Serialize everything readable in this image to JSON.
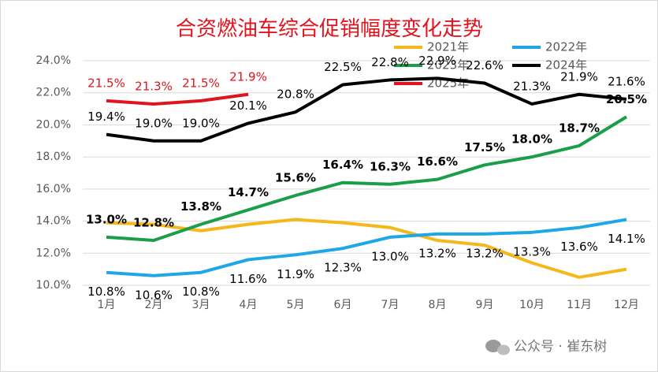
{
  "chart_data": {
    "type": "line",
    "title": "合资燃油车综合促销幅度变化走势",
    "categories": [
      "1月",
      "2月",
      "3月",
      "4月",
      "5月",
      "6月",
      "7月",
      "8月",
      "9月",
      "10月",
      "11月",
      "12月"
    ],
    "series": [
      {
        "name": "2021年",
        "color": "#f4b81c",
        "values": [
          13.9,
          13.8,
          13.4,
          13.8,
          14.1,
          13.9,
          13.6,
          12.8,
          12.5,
          11.4,
          10.5,
          11.0
        ]
      },
      {
        "name": "2022年",
        "color": "#1ea7e6",
        "values": [
          10.8,
          10.6,
          10.8,
          11.6,
          11.9,
          12.3,
          13.0,
          13.2,
          13.2,
          13.3,
          13.6,
          14.1
        ],
        "value_labels": [
          "10.8%",
          "10.6%",
          "10.8%",
          "11.6%",
          "11.9%",
          "12.3%",
          "13.0%",
          "13.2%",
          "13.2%",
          "13.3%",
          "13.6%",
          "14.1%"
        ]
      },
      {
        "name": "2023年",
        "color": "#1a9e4a",
        "values": [
          13.0,
          12.8,
          13.8,
          14.7,
          15.6,
          16.4,
          16.3,
          16.6,
          17.5,
          18.0,
          18.7,
          20.5
        ],
        "value_labels": [
          "13.0%",
          "12.8%",
          "13.8%",
          "14.7%",
          "15.6%",
          "16.4%",
          "16.3%",
          "16.6%",
          "17.5%",
          "18.0%",
          "18.7%",
          "20.5%"
        ]
      },
      {
        "name": "2024年",
        "color": "#000000",
        "values": [
          19.4,
          19.0,
          19.0,
          20.1,
          20.8,
          22.5,
          22.8,
          22.9,
          22.6,
          21.3,
          21.9,
          21.6
        ],
        "value_labels": [
          "19.4%",
          "19.0%",
          "19.0%",
          "20.1%",
          "20.8%",
          "22.5%",
          "22.8%",
          "22.9%",
          "22.6%",
          "21.3%",
          "21.9%",
          "21.6%"
        ]
      },
      {
        "name": "2025年",
        "color": "#e0141e",
        "values": [
          21.5,
          21.3,
          21.5,
          21.9,
          null,
          null,
          null,
          null,
          null,
          null,
          null,
          null
        ],
        "value_labels": [
          "21.5%",
          "21.3%",
          "21.5%",
          "21.9%",
          null,
          null,
          null,
          null,
          null,
          null,
          null,
          null
        ]
      }
    ],
    "ylim": [
      10,
      24
    ],
    "yticks": [
      {
        "value": 10,
        "label": "10.0%"
      },
      {
        "value": 12,
        "label": "12.0%"
      },
      {
        "value": 14,
        "label": "14.0%"
      },
      {
        "value": 16,
        "label": "16.0%"
      },
      {
        "value": 18,
        "label": "18.0%"
      },
      {
        "value": 20,
        "label": "20.0%"
      },
      {
        "value": 22,
        "label": "22.0%"
      },
      {
        "value": 24,
        "label": "24.0%"
      }
    ],
    "grid": true,
    "legend": "top-right"
  },
  "watermark": "公众号 · 崔东树"
}
